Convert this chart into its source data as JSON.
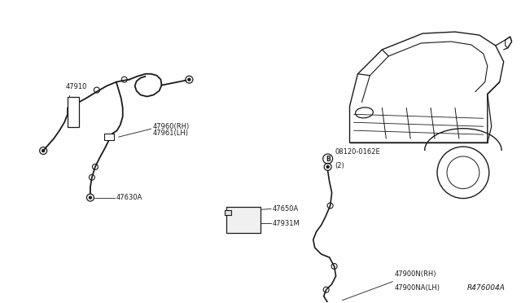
{
  "bg_color": "#ffffff",
  "line_color": "#1a1a1a",
  "text_color": "#1a1a1a",
  "diagram_ref": "R476004A",
  "figsize": [
    6.4,
    3.72
  ],
  "dpi": 100,
  "label_47910": "47910",
  "label_47960": "47960(RH)",
  "label_47961": "47961(LH)",
  "label_47630A": "47630A",
  "label_bolt": "08120-0162E",
  "label_bolt2": "(2)",
  "label_47650A": "47650A",
  "label_47931M": "47931M",
  "label_47900N": "47900N(RH)",
  "label_47900NA": "47900NA(LH)"
}
